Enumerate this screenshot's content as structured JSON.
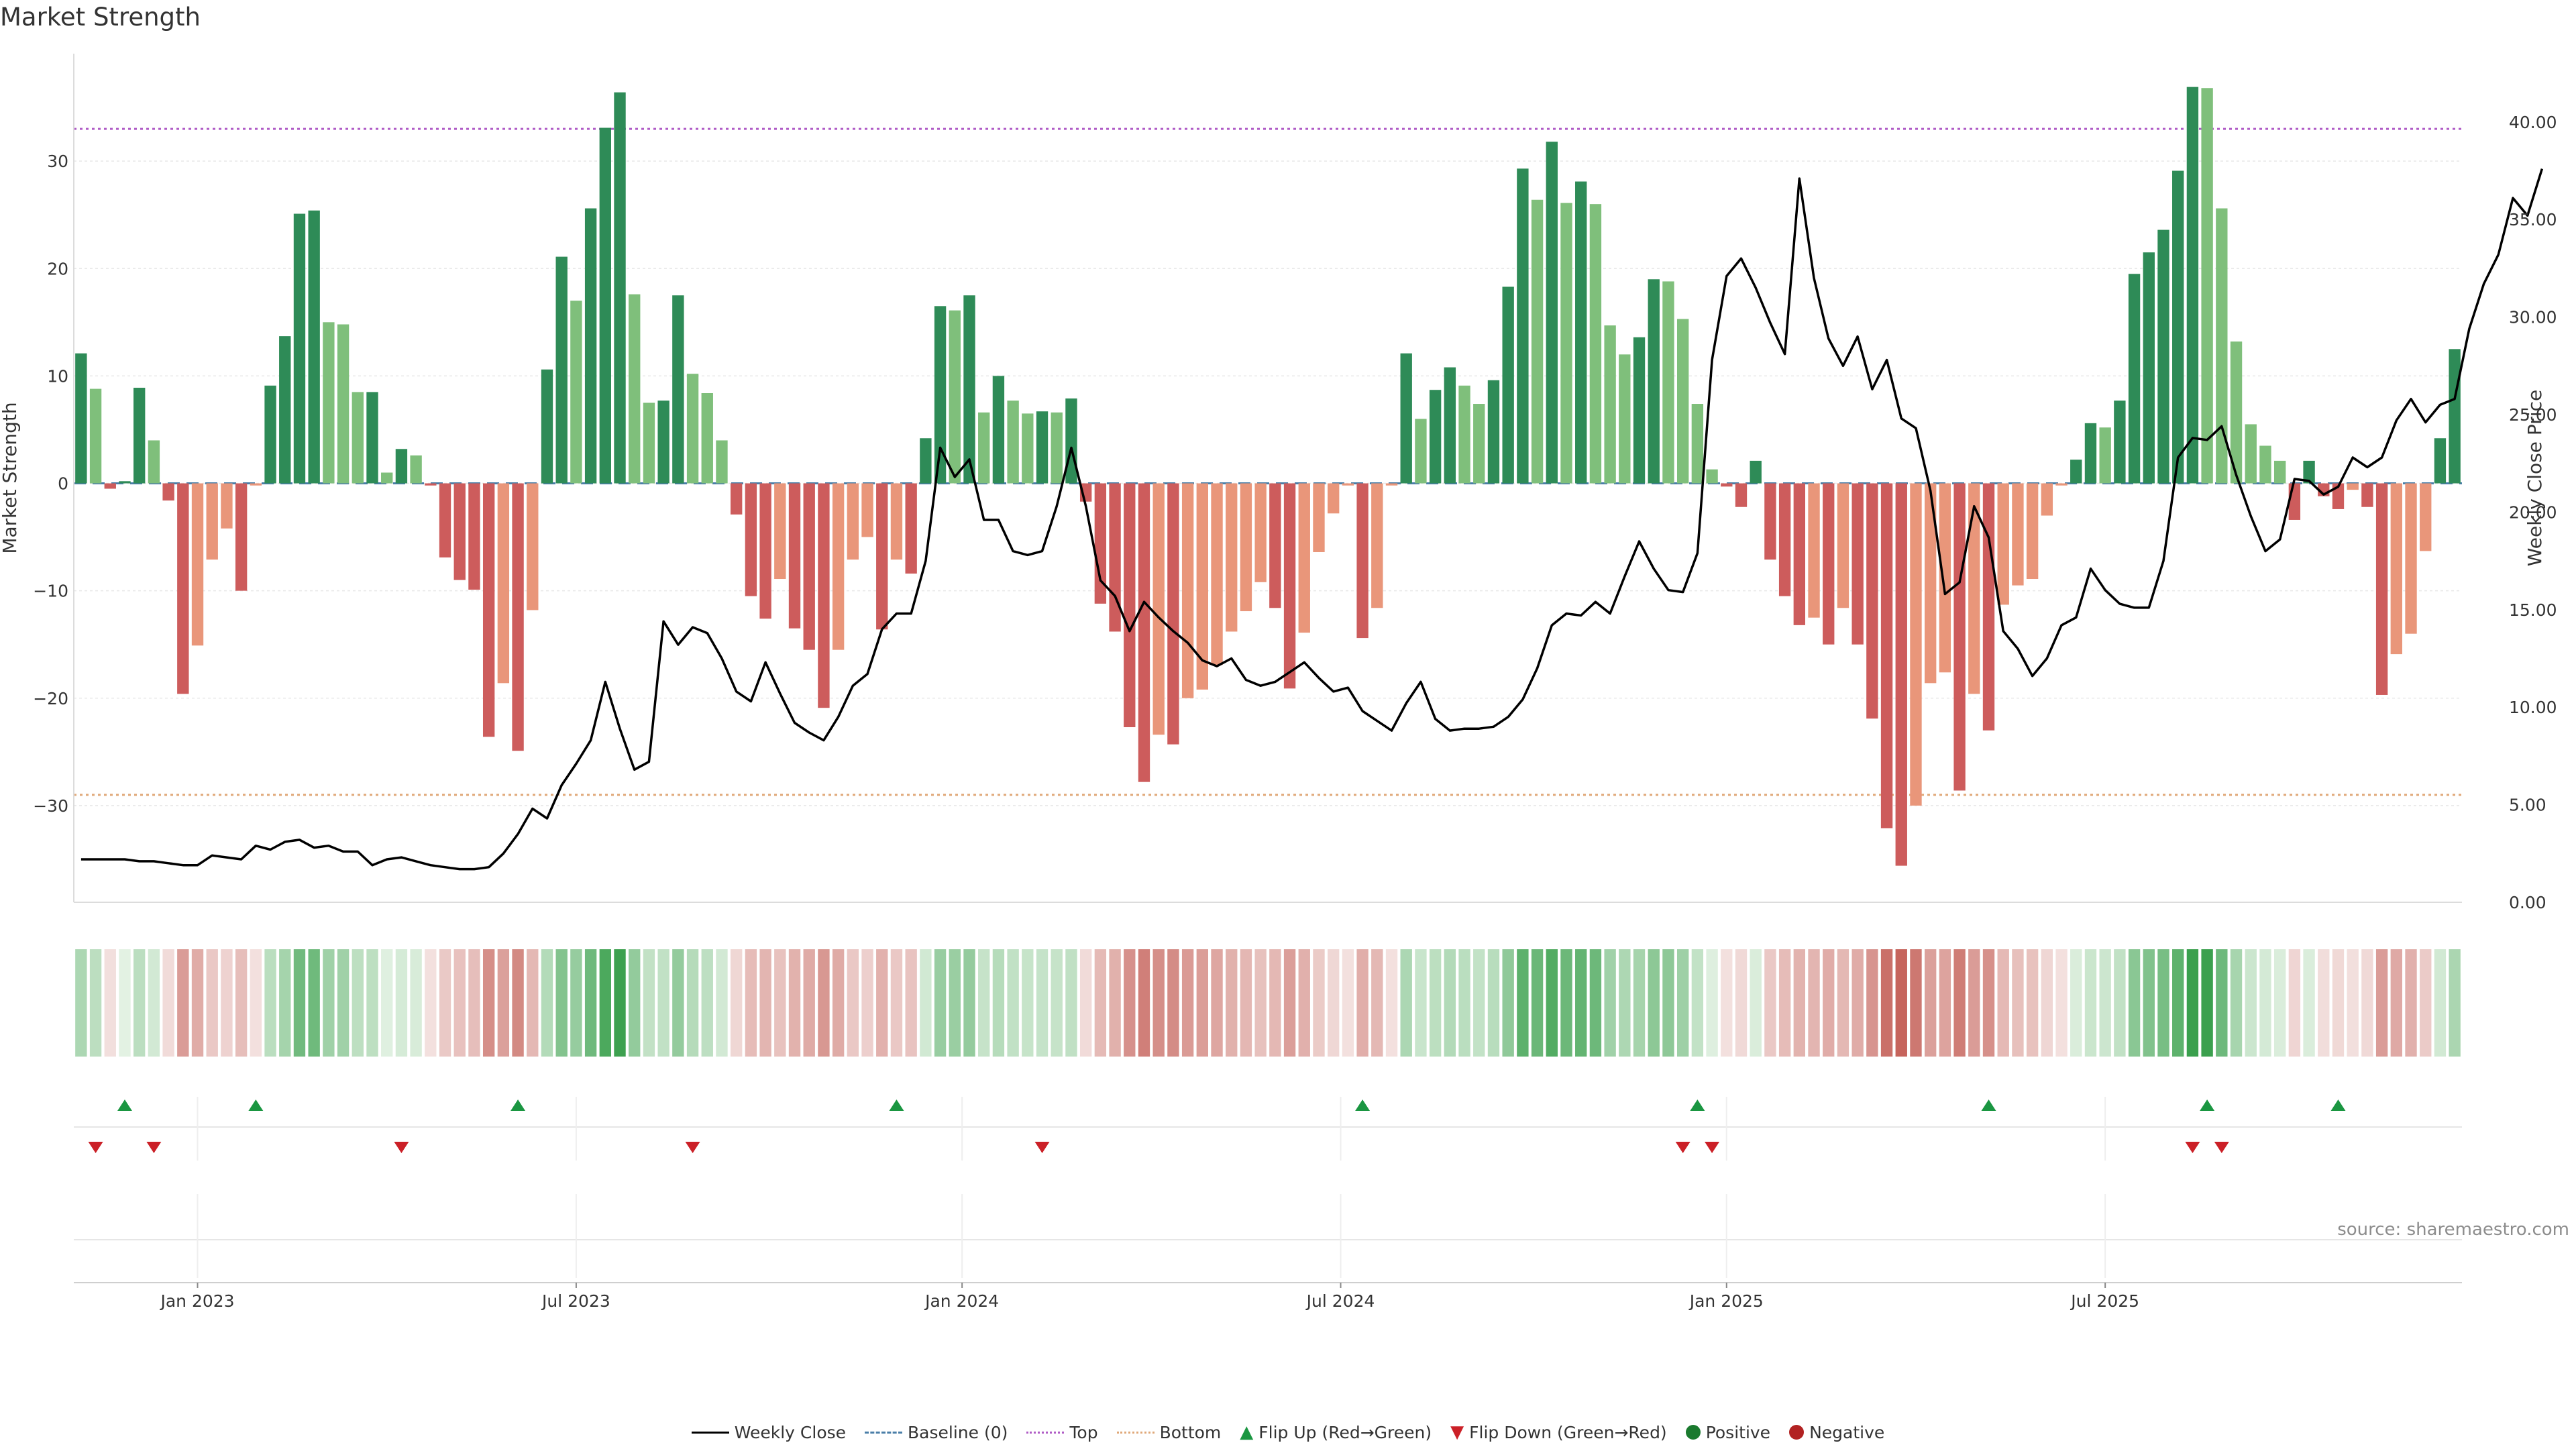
{
  "title": "Market Strength",
  "source": "source: sharemaestro.com",
  "colors": {
    "pos_dark": "#2e8b57",
    "pos_light": "#7fbf7b",
    "neg_dark": "#cd5c5c",
    "neg_light": "#e9967a",
    "line": "#000000",
    "top": "#b05cc6",
    "bottom": "#e0a878",
    "baseline": "#4a7ea8",
    "flip_up": "#1a9641",
    "flip_down": "#cb2027"
  },
  "chart_data": {
    "type": "bar",
    "xlabel": "",
    "ylabel_left": "Market Strength",
    "ylabel_right": "Weekly Close Price",
    "ylim_left": [
      -39,
      40
    ],
    "ylim_right": [
      0,
      43.5
    ],
    "yticks_left": [
      "30",
      "20",
      "10",
      "0",
      "−10",
      "−20",
      "−30"
    ],
    "yticks_right": [
      "40.00",
      "35.00",
      "30.00",
      "25.00",
      "20.00",
      "15.00",
      "10.00",
      "5.00",
      "0.00"
    ],
    "xticks": [
      "Jan 2023",
      "Jul 2023",
      "Jan 2024",
      "Jul 2024",
      "Jan 2025",
      "Jul 2025"
    ],
    "xticks_index": [
      8.5,
      34.5,
      61,
      87,
      113.5,
      139.5
    ],
    "top_level": 33,
    "bottom_level": -29,
    "baseline": 0,
    "series": [
      {
        "name": "Market Strength",
        "values": [
          12.1,
          8.8,
          -0.5,
          0.2,
          8.9,
          4.0,
          -1.6,
          -19.6,
          -15.1,
          -7.1,
          -4.2,
          -10.0,
          -0.2,
          9.1,
          13.7,
          25.1,
          25.4,
          15.0,
          14.8,
          8.5,
          8.5,
          1.0,
          3.2,
          2.6,
          -0.2,
          -6.9,
          -9.0,
          -9.9,
          -23.6,
          -18.6,
          -24.9,
          -11.8,
          10.6,
          21.1,
          17.0,
          25.6,
          33.1,
          36.4,
          17.6,
          7.5,
          7.7,
          17.5,
          10.2,
          8.4,
          4.0,
          -2.9,
          -10.5,
          -12.6,
          -8.9,
          -13.5,
          -15.5,
          -20.9,
          -15.5,
          -7.1,
          -5.0,
          -13.6,
          -7.1,
          -8.4,
          4.2,
          16.5,
          16.1,
          17.5,
          6.6,
          10.0,
          7.7,
          6.5,
          6.7,
          6.6,
          7.9,
          -1.7,
          -11.2,
          -13.8,
          -22.7,
          -27.8,
          -23.4,
          -24.3,
          -20.0,
          -19.2,
          -16.9,
          -13.8,
          -11.9,
          -9.2,
          -11.6,
          -19.1,
          -13.9,
          -6.4,
          -2.8,
          -0.2,
          -14.4,
          -11.6,
          -0.2,
          12.1,
          6.0,
          8.7,
          10.8,
          9.1,
          7.4,
          9.6,
          18.3,
          29.3,
          26.4,
          31.8,
          26.1,
          28.1,
          26.0,
          14.7,
          12.0,
          13.6,
          19.0,
          18.8,
          15.3,
          7.4,
          1.3,
          -0.3,
          -2.2,
          2.1,
          -7.1,
          -10.5,
          -13.2,
          -12.5,
          -15.0,
          -11.6,
          -15.0,
          -21.9,
          -32.1,
          -35.6,
          -30.0,
          -18.6,
          -17.6,
          -28.6,
          -19.6,
          -23.0,
          -11.3,
          -9.5,
          -8.9,
          -3.0,
          -0.2,
          2.2,
          5.6,
          5.2,
          7.7,
          19.5,
          21.5,
          23.6,
          29.1,
          36.9,
          36.8,
          25.6,
          13.2,
          5.5,
          3.5,
          2.1,
          -3.4,
          2.1,
          -1.2,
          -2.4,
          -0.6,
          -2.2,
          -19.7,
          -15.9,
          -14.0,
          -6.3,
          4.2,
          12.5
        ]
      },
      {
        "name": "Weekly Close",
        "values": [
          2.2,
          2.2,
          2.2,
          2.2,
          2.1,
          2.1,
          2.0,
          1.9,
          1.9,
          2.4,
          2.3,
          2.2,
          2.9,
          2.7,
          3.1,
          3.2,
          2.8,
          2.9,
          2.6,
          2.6,
          1.9,
          2.2,
          2.3,
          2.1,
          1.9,
          1.8,
          1.7,
          1.7,
          1.8,
          2.5,
          3.5,
          4.8,
          4.3,
          6.0,
          7.1,
          8.3,
          11.3,
          8.9,
          6.8,
          7.2,
          14.4,
          13.2,
          14.1,
          13.8,
          12.5,
          10.8,
          10.3,
          12.3,
          10.7,
          9.2,
          8.7,
          8.3,
          9.5,
          11.1,
          11.7,
          14.0,
          14.8,
          14.8,
          17.5,
          23.3,
          21.8,
          22.7,
          19.6,
          19.6,
          18.0,
          17.8,
          18.0,
          20.3,
          23.3,
          20.3,
          16.5,
          15.7,
          13.9,
          15.4,
          14.6,
          13.9,
          13.3,
          12.4,
          12.1,
          12.5,
          11.4,
          11.1,
          11.3,
          11.8,
          12.3,
          11.5,
          10.8,
          11.0,
          9.8,
          9.3,
          8.8,
          10.2,
          11.3,
          9.4,
          8.8,
          8.9,
          8.9,
          9.0,
          9.5,
          10.4,
          12.0,
          14.2,
          14.8,
          14.7,
          15.4,
          14.8,
          16.7,
          18.5,
          17.1,
          16.0,
          15.9,
          17.9,
          27.8,
          32.1,
          33.0,
          31.5,
          29.7,
          28.1,
          37.1,
          32.0,
          28.9,
          27.5,
          29.0,
          26.3,
          27.8,
          24.8,
          24.3,
          21.1,
          15.8,
          16.4,
          20.3,
          18.7,
          13.9,
          13.0,
          11.6,
          12.5,
          14.2,
          14.6,
          17.1,
          16.0,
          15.3,
          15.1,
          15.1,
          17.5,
          22.8,
          23.8,
          23.7,
          24.4,
          21.9,
          19.8,
          18.0,
          18.6,
          21.7,
          21.6,
          20.9,
          21.3,
          22.8,
          22.3,
          22.8,
          24.7,
          25.8,
          24.6,
          25.5,
          25.8,
          29.4,
          31.7,
          33.2,
          36.1,
          35.2,
          37.6
        ]
      }
    ],
    "flip_up": [
      3,
      12,
      30,
      56,
      88,
      111,
      131,
      146,
      155
    ],
    "flip_down": [
      1,
      5,
      22,
      42,
      66,
      110,
      112,
      145,
      147
    ],
    "legend": [
      "Weekly Close",
      "Baseline (0)",
      "Top",
      "Bottom",
      "Flip Up (Red→Green)",
      "Flip Down (Green→Red)",
      "Positive",
      "Negative"
    ],
    "legend_position": "bottom-center"
  }
}
